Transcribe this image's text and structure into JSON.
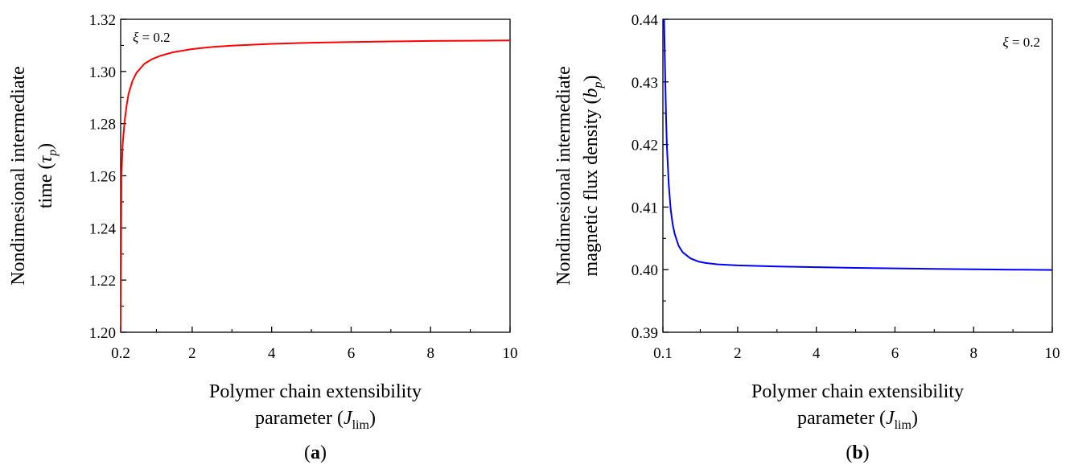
{
  "chart_data": [
    {
      "panel": "(a)",
      "panel_letter": "a",
      "type": "line",
      "annotation": {
        "symbol": "ξ",
        "text": " = 0.2"
      },
      "ylabel": {
        "line1": "Nondimesional intermediate",
        "line2_prefix": "time (",
        "symbol": "τ",
        "sub": "p",
        "line2_suffix": ")"
      },
      "xlabel": {
        "line1": "Polymer chain extensibility",
        "line2_prefix": "parameter (",
        "symbol": "J",
        "sub": "lim",
        "line2_suffix": ")"
      },
      "xlim": [
        0.2,
        10
      ],
      "ylim": [
        1.2,
        1.32
      ],
      "xticks": [
        0.2,
        2,
        4,
        6,
        8,
        10
      ],
      "xtick_labels": [
        "0.2",
        "2",
        "4",
        "6",
        "8",
        "10"
      ],
      "yticks": [
        1.2,
        1.22,
        1.24,
        1.26,
        1.28,
        1.3,
        1.32
      ],
      "ytick_labels": [
        "1.20",
        "1.22",
        "1.24",
        "1.26",
        "1.28",
        "1.30",
        "1.32"
      ],
      "colors": {
        "line": "#ff0000"
      },
      "series": [
        {
          "x": [
            0.2,
            0.22,
            0.25,
            0.3,
            0.35,
            0.4,
            0.5,
            0.6,
            0.8,
            1.0,
            1.2,
            1.5,
            2,
            2.5,
            3,
            4,
            5,
            6,
            7,
            8,
            9,
            10
          ],
          "values": [
            1.2,
            1.26,
            1.272,
            1.281,
            1.287,
            1.2915,
            1.2965,
            1.2995,
            1.303,
            1.3048,
            1.306,
            1.3073,
            1.3086,
            1.3094,
            1.3099,
            1.3106,
            1.311,
            1.3113,
            1.3115,
            1.3117,
            1.3118,
            1.3119
          ]
        }
      ]
    },
    {
      "panel": "(b)",
      "panel_letter": "b",
      "type": "line",
      "annotation": {
        "symbol": "ξ",
        "text": " = 0.2"
      },
      "ylabel": {
        "line1": "Nondimesional intermediate",
        "line2_prefix": "magnetic flux density (",
        "symbol": "b",
        "sub": "p",
        "line2_suffix": ")"
      },
      "xlabel": {
        "line1": "Polymer chain extensibility",
        "line2_prefix": "parameter (",
        "symbol": "J",
        "sub": "lim",
        "line2_suffix": ")"
      },
      "xlim": [
        0.1,
        10
      ],
      "ylim": [
        0.39,
        0.44
      ],
      "xticks": [
        0.1,
        2,
        4,
        6,
        8,
        10
      ],
      "xtick_labels": [
        "0.1",
        "2",
        "4",
        "6",
        "8",
        "10"
      ],
      "yticks": [
        0.39,
        0.4,
        0.41,
        0.42,
        0.43,
        0.44
      ],
      "ytick_labels": [
        "0.39",
        "0.40",
        "0.41",
        "0.42",
        "0.43",
        "0.44"
      ],
      "colors": {
        "line": "#0000ff"
      },
      "series": [
        {
          "x": [
            0.13,
            0.15,
            0.18,
            0.2,
            0.25,
            0.3,
            0.35,
            0.4,
            0.5,
            0.6,
            0.8,
            1.0,
            1.2,
            1.5,
            2,
            3,
            4,
            5,
            6,
            7,
            8,
            9,
            10
          ],
          "values": [
            0.44,
            0.4335,
            0.4245,
            0.42,
            0.4135,
            0.4095,
            0.4072,
            0.4057,
            0.4038,
            0.4028,
            0.4018,
            0.4013,
            0.40105,
            0.40085,
            0.40068,
            0.4005,
            0.4004,
            0.40028,
            0.4002,
            0.40012,
            0.40005,
            0.4,
            0.39995
          ]
        }
      ]
    }
  ]
}
